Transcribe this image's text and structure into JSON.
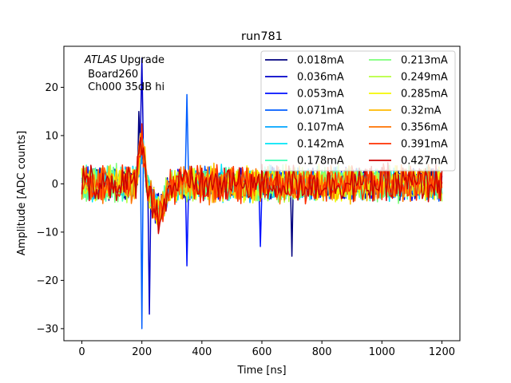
{
  "chart_data": {
    "type": "line",
    "title": "run781",
    "xlabel": "Time [ns]",
    "ylabel": "Amplitude [ADC counts]",
    "xlim": [
      -60,
      1260
    ],
    "ylim": [
      -32.5,
      28.5
    ],
    "xticks": [
      0,
      200,
      400,
      600,
      800,
      1000,
      1200
    ],
    "xtick_labels": [
      "0",
      "200",
      "400",
      "600",
      "800",
      "1000",
      "1200"
    ],
    "yticks": [
      -30,
      -20,
      -10,
      0,
      10,
      20
    ],
    "ytick_labels": [
      "−30",
      "−20",
      "−10",
      "0",
      "10",
      "20"
    ],
    "grid": false,
    "legend_position": "top-right",
    "legend_columns": 2,
    "annotation": {
      "line1_italic": "ATLAS",
      "line1_rest": " Upgrade",
      "line2": " Board260",
      "line3": " Ch000 35dB hi"
    },
    "noise_model": {
      "t_start": 0,
      "t_end": 1200,
      "n_points": 241,
      "base_noise_amplitude": 3.5,
      "pulse_time": 200,
      "pulse_positive_peak": 9,
      "pulse_undershoot": -6
    },
    "series": [
      {
        "name": "0.018mA",
        "color": "#00007f",
        "spikes": [
          {
            "t": 190,
            "v": 15
          },
          {
            "t": 700,
            "v": -15
          }
        ]
      },
      {
        "name": "0.036mA",
        "color": "#0000c8",
        "spikes": [
          {
            "t": 200,
            "v": 26
          },
          {
            "t": 225,
            "v": -27
          }
        ]
      },
      {
        "name": "0.053mA",
        "color": "#0011ff",
        "spikes": [
          {
            "t": 350,
            "v": -17
          },
          {
            "t": 595,
            "v": -13
          }
        ]
      },
      {
        "name": "0.071mA",
        "color": "#005dff",
        "spikes": [
          {
            "t": 198,
            "v": -30
          },
          {
            "t": 350,
            "v": 18.5
          }
        ]
      },
      {
        "name": "0.107mA",
        "color": "#00a4ff",
        "spikes": []
      },
      {
        "name": "0.142mA",
        "color": "#00e4f7",
        "spikes": []
      },
      {
        "name": "0.178mA",
        "color": "#3fffb7",
        "spikes": []
      },
      {
        "name": "0.213mA",
        "color": "#7cff79",
        "spikes": []
      },
      {
        "name": "0.249mA",
        "color": "#b7ff3f",
        "spikes": []
      },
      {
        "name": "0.285mA",
        "color": "#f4f802",
        "spikes": []
      },
      {
        "name": "0.32mA",
        "color": "#ffb900",
        "spikes": []
      },
      {
        "name": "0.356mA",
        "color": "#ff7300",
        "spikes": []
      },
      {
        "name": "0.391mA",
        "color": "#ff3000",
        "spikes": []
      },
      {
        "name": "0.427mA",
        "color": "#cd0000",
        "spikes": []
      }
    ]
  }
}
